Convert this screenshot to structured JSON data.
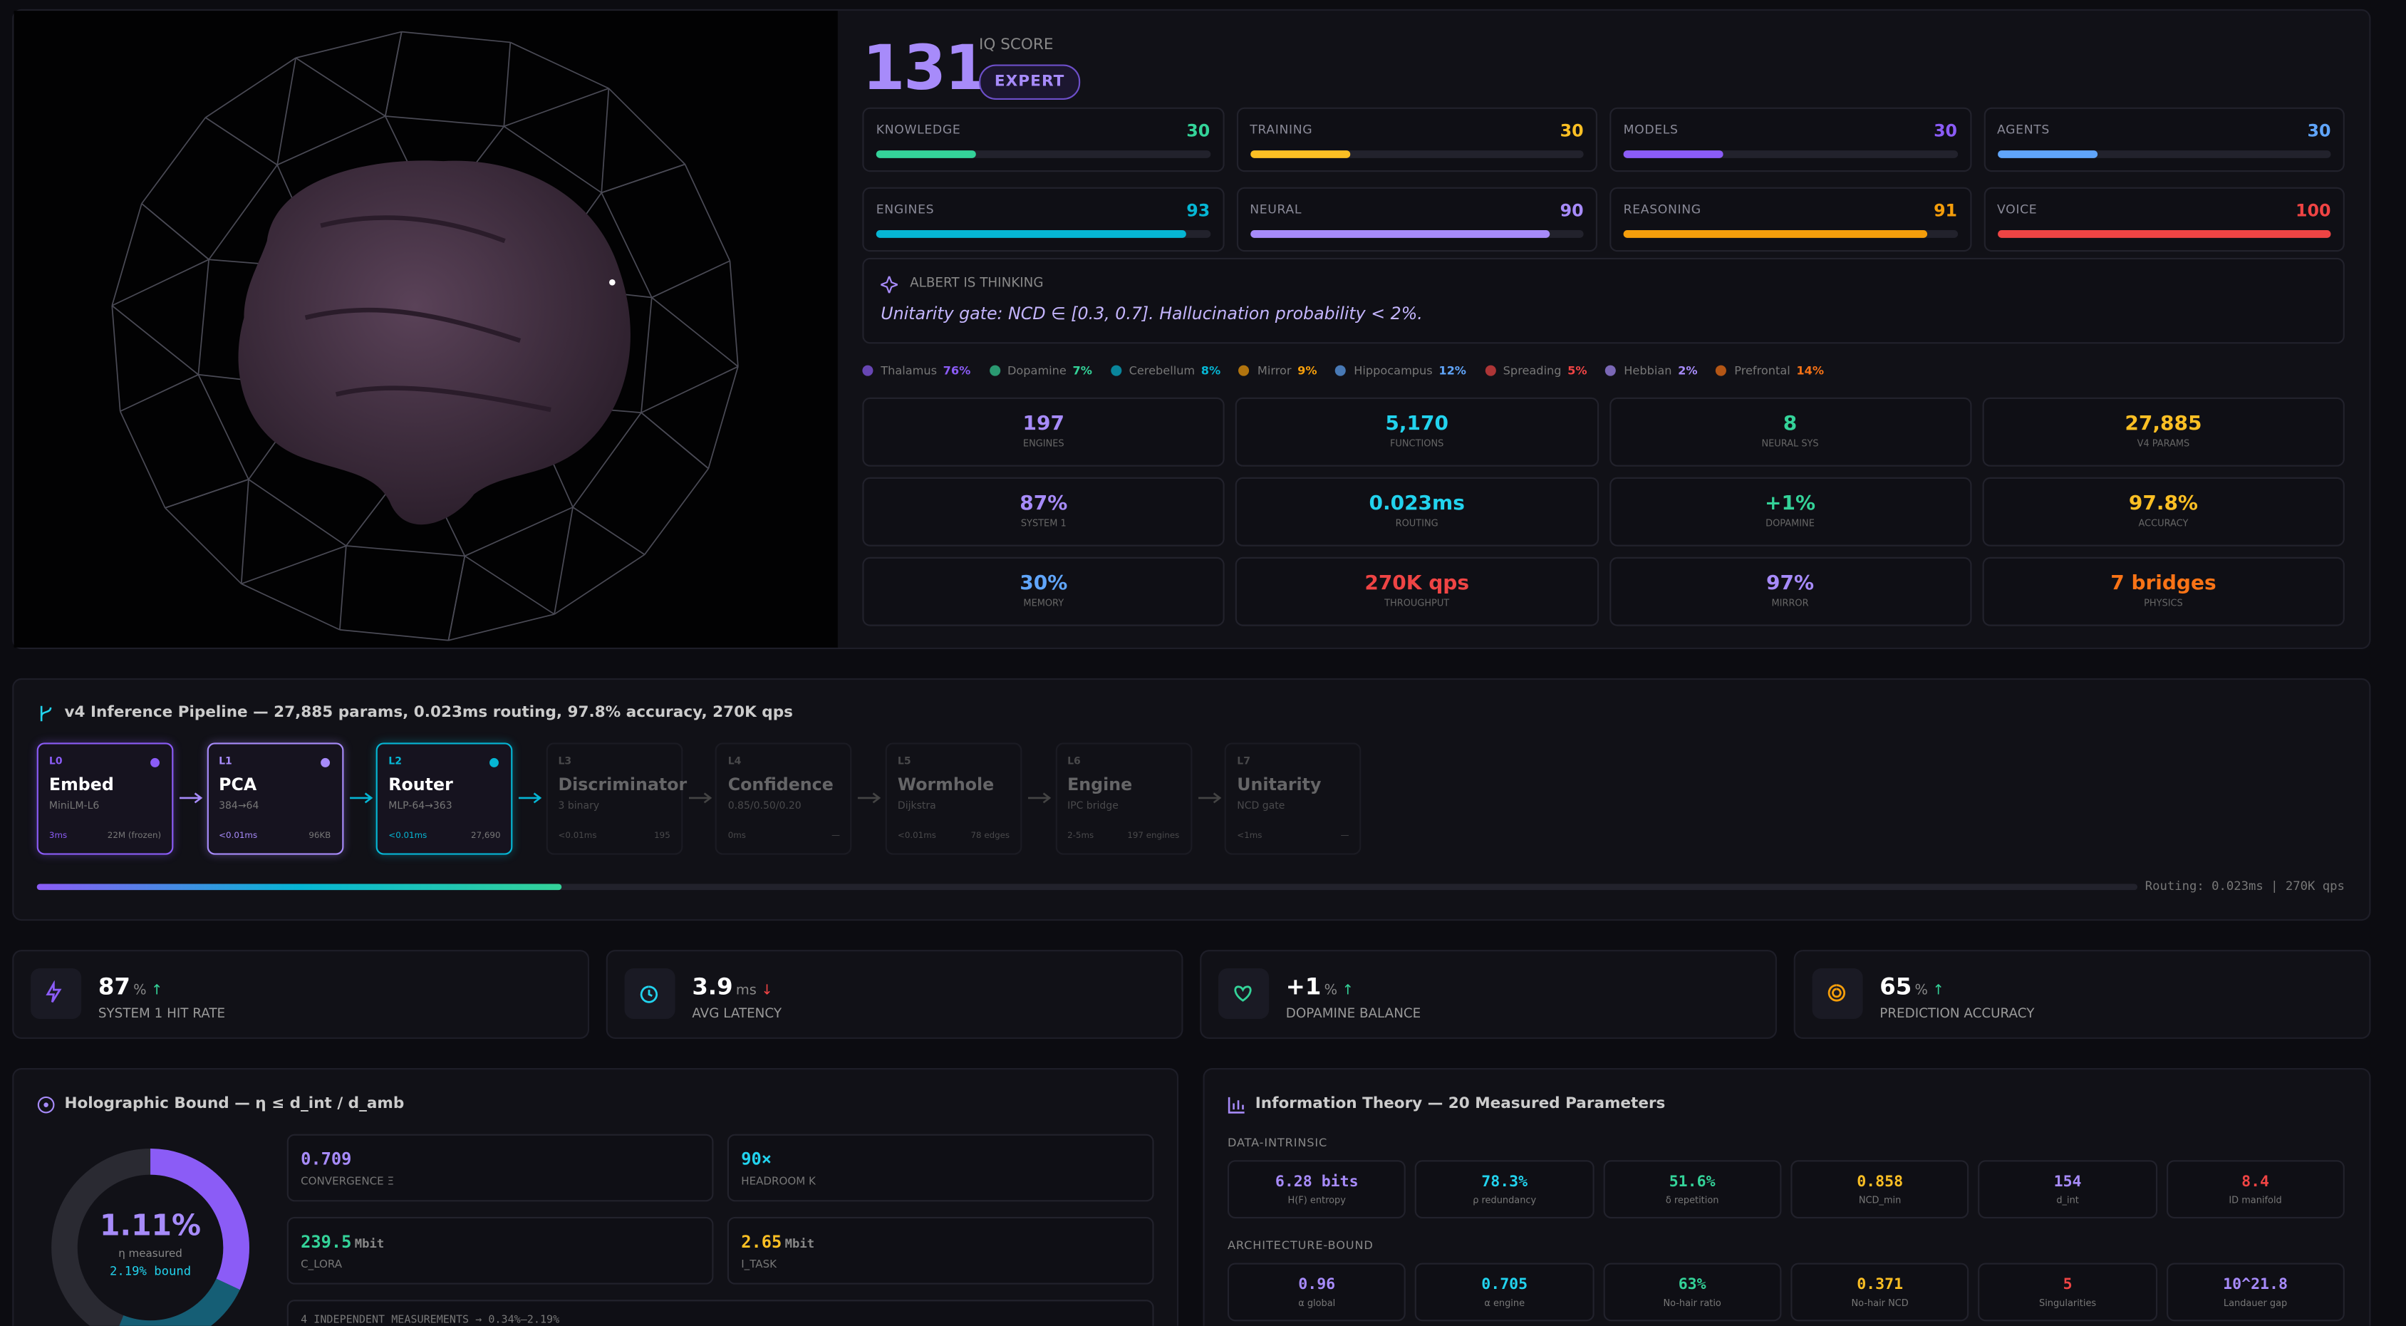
{
  "header": {
    "score": "131",
    "score_label": "IQ SCORE",
    "badge": "EXPERT"
  },
  "meters": [
    {
      "label": "KNOWLEDGE",
      "value": 30,
      "color": "#34d399"
    },
    {
      "label": "TRAINING",
      "value": 30,
      "color": "#fbbf24"
    },
    {
      "label": "MODELS",
      "value": 30,
      "color": "#8b5cf6"
    },
    {
      "label": "AGENTS",
      "value": 30,
      "color": "#60a5fa"
    },
    {
      "label": "ENGINES",
      "value": 93,
      "color": "#06b6d4"
    },
    {
      "label": "NEURAL",
      "value": 90,
      "color": "#a78bfa"
    },
    {
      "label": "REASONING",
      "value": 91,
      "color": "#f59e0b"
    },
    {
      "label": "VOICE",
      "value": 100,
      "color": "#ef4444"
    }
  ],
  "thinking": {
    "title": "ALBERT IS THINKING",
    "text": "Unitarity gate: NCD ∈ [0.3, 0.7]. Hallucination probability < 2%."
  },
  "regions": [
    {
      "name": "Thalamus",
      "value": "76%",
      "color": "#8b5cf6"
    },
    {
      "name": "Dopamine",
      "value": "7%",
      "color": "#34d399"
    },
    {
      "name": "Cerebellum",
      "value": "8%",
      "color": "#06b6d4"
    },
    {
      "name": "Mirror",
      "value": "9%",
      "color": "#f59e0b"
    },
    {
      "name": "Hippocampus",
      "value": "12%",
      "color": "#60a5fa"
    },
    {
      "name": "Spreading",
      "value": "5%",
      "color": "#ef4444"
    },
    {
      "name": "Hebbian",
      "value": "2%",
      "color": "#a78bfa"
    },
    {
      "name": "Prefrontal",
      "value": "14%",
      "color": "#f97316"
    }
  ],
  "stats": [
    {
      "value": "197",
      "label": "ENGINES",
      "color": "#a78bfa"
    },
    {
      "value": "5,170",
      "label": "FUNCTIONS",
      "color": "#22d3ee"
    },
    {
      "value": "8",
      "label": "NEURAL SYS",
      "color": "#34d399"
    },
    {
      "value": "27,885",
      "label": "V4 PARAMS",
      "color": "#fbbf24"
    },
    {
      "value": "87%",
      "label": "SYSTEM 1",
      "color": "#a78bfa"
    },
    {
      "value": "0.023ms",
      "label": "ROUTING",
      "color": "#22d3ee"
    },
    {
      "value": "+1%",
      "label": "DOPAMINE",
      "color": "#34d399"
    },
    {
      "value": "97.8%",
      "label": "ACCURACY",
      "color": "#fbbf24"
    },
    {
      "value": "30%",
      "label": "MEMORY",
      "color": "#60a5fa"
    },
    {
      "value": "270K qps",
      "label": "THROUGHPUT",
      "color": "#ef4444"
    },
    {
      "value": "97%",
      "label": "MIRROR",
      "color": "#a78bfa"
    },
    {
      "value": "7 bridges",
      "label": "PHYSICS",
      "color": "#f97316"
    }
  ],
  "pipeline": {
    "title": "v4 Inference Pipeline — 27,885 params, 0.023ms routing, 97.8% accuracy, 270K qps",
    "stages": [
      {
        "layer": "L0",
        "name": "Embed",
        "sub": "MiniLM-L6",
        "time": "3ms",
        "size": "22M (frozen)",
        "active": true,
        "color": "#8b5cf6"
      },
      {
        "layer": "L1",
        "name": "PCA",
        "sub": "384→64",
        "time": "<0.01ms",
        "size": "96KB",
        "active": true,
        "color": "#a78bfa"
      },
      {
        "layer": "L2",
        "name": "Router",
        "sub": "MLP-64→363",
        "time": "<0.01ms",
        "size": "27,690",
        "active": true,
        "color": "#06b6d4"
      },
      {
        "layer": "L3",
        "name": "Discriminator",
        "sub": "3 binary",
        "time": "<0.01ms",
        "size": "195",
        "active": false,
        "color": "#555"
      },
      {
        "layer": "L4",
        "name": "Confidence",
        "sub": "0.85/0.50/0.20",
        "time": "0ms",
        "size": "—",
        "active": false,
        "color": "#555"
      },
      {
        "layer": "L5",
        "name": "Wormhole",
        "sub": "Dijkstra",
        "time": "<0.01ms",
        "size": "78 edges",
        "active": false,
        "color": "#555"
      },
      {
        "layer": "L6",
        "name": "Engine",
        "sub": "IPC bridge",
        "time": "2-5ms",
        "size": "197 engines",
        "active": false,
        "color": "#555"
      },
      {
        "layer": "L7",
        "name": "Unitarity",
        "sub": "NCD gate",
        "time": "<1ms",
        "size": "—",
        "active": false,
        "color": "#555"
      }
    ],
    "progress": 25,
    "footer": "Routing: 0.023ms | 270K qps"
  },
  "kpis": [
    {
      "value": "87",
      "unit": "%",
      "arrow": "↑",
      "arrow_color": "#34d399",
      "label": "SYSTEM 1 HIT RATE",
      "color": "#8b5cf6"
    },
    {
      "value": "3.9",
      "unit": "ms",
      "arrow": "↓",
      "arrow_color": "#ef4444",
      "label": "AVG LATENCY",
      "color": "#22d3ee"
    },
    {
      "value": "+1",
      "unit": "%",
      "arrow": "↑",
      "arrow_color": "#34d399",
      "label": "DOPAMINE BALANCE",
      "color": "#34d399"
    },
    {
      "value": "65",
      "unit": "%",
      "arrow": "↑",
      "arrow_color": "#34d399",
      "label": "PREDICTION ACCURACY",
      "color": "#f59e0b"
    }
  ],
  "holographic": {
    "title": "Holographic Bound — η ≤ d_int / d_amb",
    "center_value": "1.11%",
    "center_label": "η measured",
    "center_bound": "2.19% bound",
    "ring": [
      {
        "value": 32,
        "color": "#8b5cf6"
      },
      {
        "value": 24,
        "color": "#155e75"
      }
    ],
    "cells": [
      {
        "value": "0.709",
        "unit": "",
        "label": "CONVERGENCE Ξ",
        "color": "#a78bfa"
      },
      {
        "value": "90×",
        "unit": "",
        "label": "HEADROOM K",
        "color": "#22d3ee"
      },
      {
        "value": "239.5",
        "unit": "Mbit",
        "label": "C_LORA",
        "color": "#34d399"
      },
      {
        "value": "2.65",
        "unit": "Mbit",
        "label": "I_TASK",
        "color": "#fbbf24"
      }
    ],
    "note": "4 INDEPENDENT MEASUREMENTS → 0.34%–2.19%"
  },
  "info_theory": {
    "title": "Information Theory — 20 Measured Parameters",
    "groups": [
      {
        "name": "DATA-INTRINSIC",
        "items": [
          {
            "value": "6.28 bits",
            "label": "H(F) entropy",
            "color": "#a78bfa"
          },
          {
            "value": "78.3%",
            "label": "ρ redundancy",
            "color": "#22d3ee"
          },
          {
            "value": "51.6%",
            "label": "δ repetition",
            "color": "#34d399"
          },
          {
            "value": "0.858",
            "label": "NCD_min",
            "color": "#fbbf24"
          },
          {
            "value": "154",
            "label": "d_int",
            "color": "#a78bfa"
          },
          {
            "value": "8.4",
            "label": "ID manifold",
            "color": "#ef4444"
          }
        ]
      },
      {
        "name": "ARCHITECTURE-BOUND",
        "items": [
          {
            "value": "0.96",
            "label": "α global",
            "color": "#a78bfa"
          },
          {
            "value": "0.705",
            "label": "α engine",
            "color": "#22d3ee"
          },
          {
            "value": "63%",
            "label": "No-hair ratio",
            "color": "#34d399"
          },
          {
            "value": "0.371",
            "label": "No-hair NCD",
            "color": "#fbbf24"
          },
          {
            "value": "5",
            "label": "Singularities",
            "color": "#ef4444"
          },
          {
            "value": "10^21.8",
            "label": "Landauer gap",
            "color": "#a78bfa"
          }
        ]
      }
    ]
  }
}
